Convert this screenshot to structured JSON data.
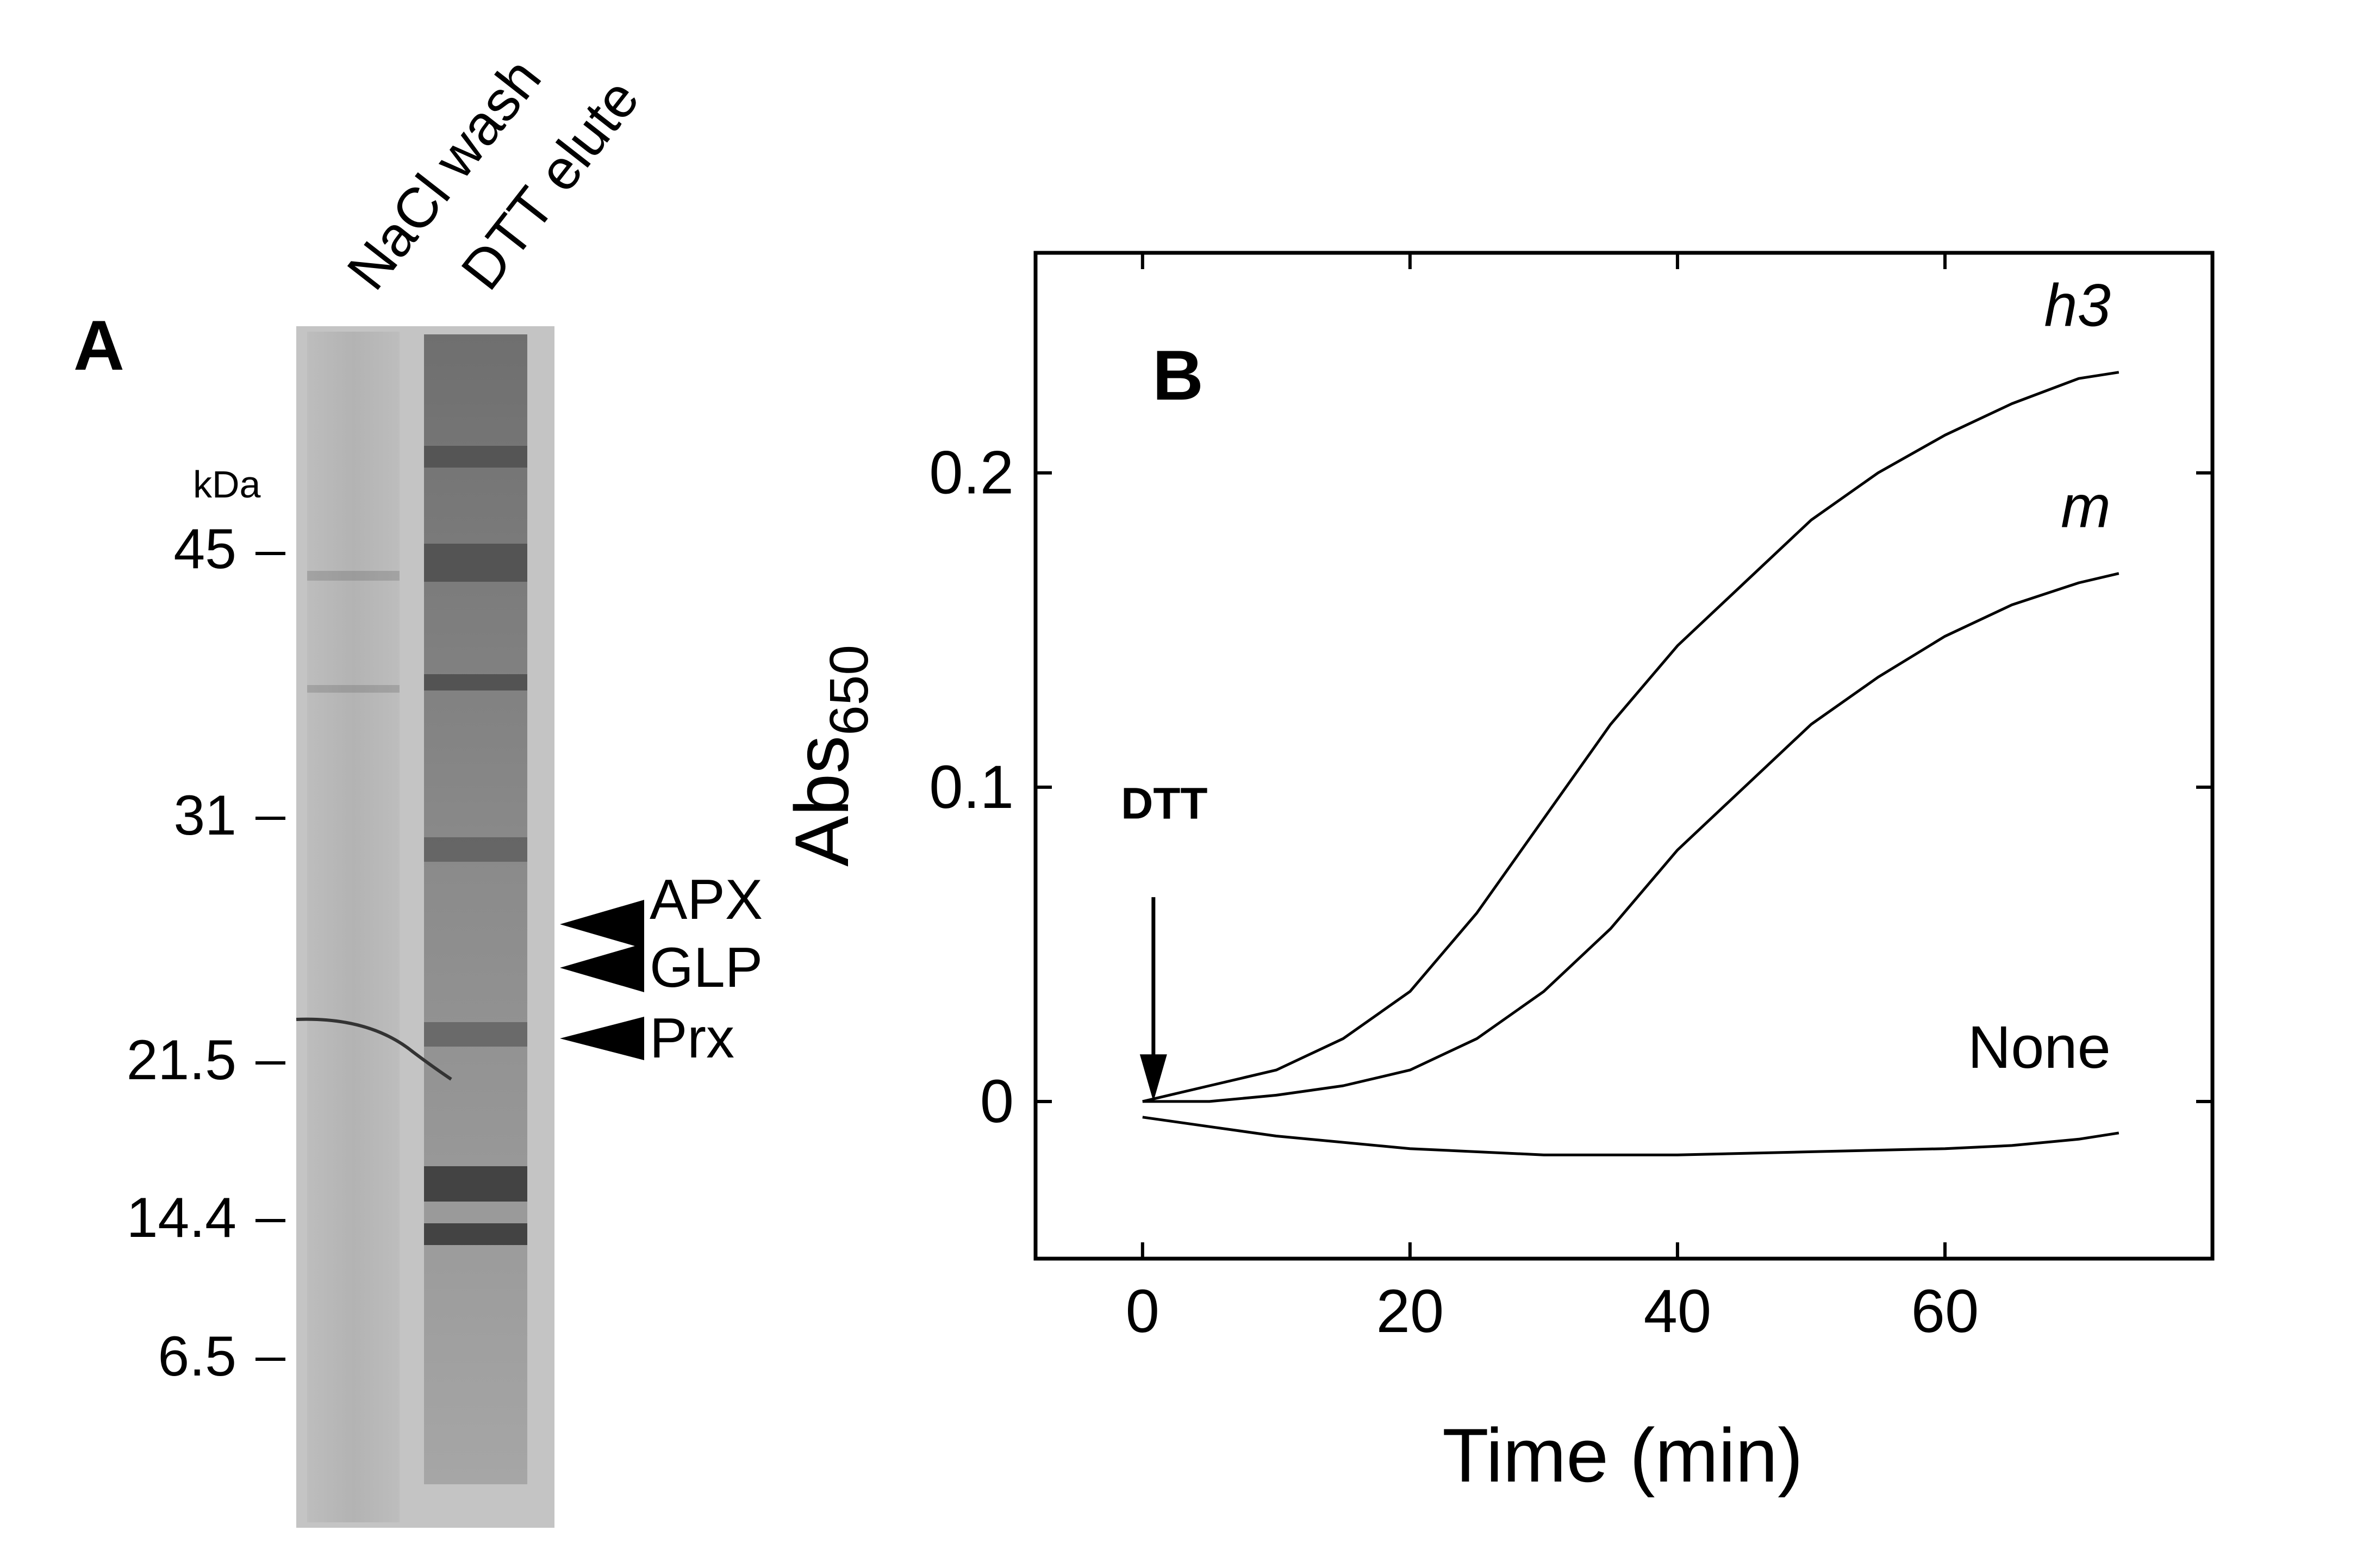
{
  "gel": {
    "panel_label": "A",
    "lanes": [
      "NaCl wash",
      "DTT elute"
    ],
    "unit_label": "kDa",
    "markers": [
      "45",
      "31",
      "21.5",
      "14.4",
      "6.5"
    ],
    "bands": [
      "APX",
      "GLP",
      "Prx"
    ]
  },
  "chart_data": {
    "type": "line",
    "panel_label": "B",
    "xlabel": "Time (min)",
    "ylabel_main": "Abs",
    "ylabel_sub": "650",
    "xlim": [
      -8,
      80
    ],
    "ylim": [
      -0.05,
      0.27
    ],
    "xticks": [
      "0",
      "20",
      "40",
      "60"
    ],
    "yticks": [
      "0",
      "0.1",
      "0.2"
    ],
    "annotation": "DTT",
    "annotation_x": 0,
    "series": [
      {
        "name": "h3",
        "x": [
          0,
          5,
          10,
          15,
          20,
          25,
          30,
          35,
          40,
          45,
          50,
          55,
          60,
          65,
          70,
          73
        ],
        "y": [
          0.0,
          0.005,
          0.01,
          0.02,
          0.035,
          0.06,
          0.09,
          0.12,
          0.145,
          0.165,
          0.185,
          0.2,
          0.212,
          0.222,
          0.23,
          0.232
        ]
      },
      {
        "name": "m",
        "x": [
          0,
          5,
          10,
          15,
          20,
          25,
          30,
          35,
          40,
          45,
          50,
          55,
          60,
          65,
          70,
          73
        ],
        "y": [
          0.0,
          0.0,
          0.002,
          0.005,
          0.01,
          0.02,
          0.035,
          0.055,
          0.08,
          0.1,
          0.12,
          0.135,
          0.148,
          0.158,
          0.165,
          0.168
        ]
      },
      {
        "name": "None",
        "x": [
          0,
          5,
          10,
          20,
          30,
          40,
          50,
          60,
          65,
          70,
          73
        ],
        "y": [
          -0.005,
          -0.008,
          -0.011,
          -0.015,
          -0.017,
          -0.017,
          -0.016,
          -0.015,
          -0.014,
          -0.012,
          -0.01
        ]
      }
    ]
  }
}
